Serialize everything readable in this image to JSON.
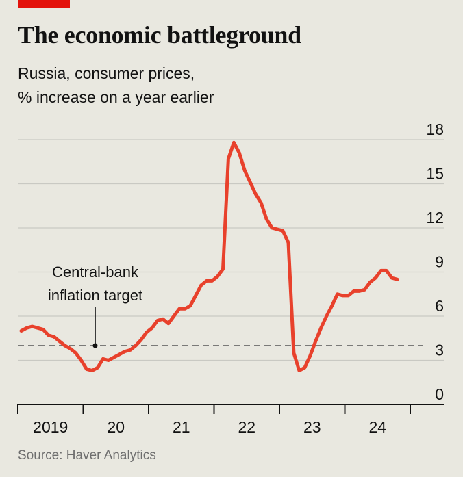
{
  "header": {
    "title": "The economic battleground",
    "subtitle_line1": "Russia, consumer prices,",
    "subtitle_line2": "% increase on a year earlier",
    "accent_color": "#e3120b"
  },
  "footer": {
    "source": "Source: Haver Analytics"
  },
  "chart_data": {
    "type": "line",
    "title": "The economic battleground",
    "subtitle": "Russia, consumer prices, % increase on a year earlier",
    "source": "Source: Haver Analytics",
    "x_tick_labels": [
      "2019",
      "20",
      "21",
      "22",
      "23",
      "24"
    ],
    "y_ticks": [
      0,
      3,
      6,
      9,
      12,
      15,
      18
    ],
    "ylim": [
      0,
      18
    ],
    "grid": true,
    "y_axis_side": "right",
    "series": [
      {
        "color": "#e8412c",
        "x": [
          "2019-01",
          "2019-02",
          "2019-03",
          "2019-04",
          "2019-05",
          "2019-06",
          "2019-07",
          "2019-08",
          "2019-09",
          "2019-10",
          "2019-11",
          "2019-12",
          "2020-01",
          "2020-02",
          "2020-03",
          "2020-04",
          "2020-05",
          "2020-06",
          "2020-07",
          "2020-08",
          "2020-09",
          "2020-10",
          "2020-11",
          "2020-12",
          "2021-01",
          "2021-02",
          "2021-03",
          "2021-04",
          "2021-05",
          "2021-06",
          "2021-07",
          "2021-08",
          "2021-09",
          "2021-10",
          "2021-11",
          "2021-12",
          "2022-01",
          "2022-02",
          "2022-03",
          "2022-04",
          "2022-05",
          "2022-06",
          "2022-07",
          "2022-08",
          "2022-09",
          "2022-10",
          "2022-11",
          "2022-12",
          "2023-01",
          "2023-02",
          "2023-03",
          "2023-04",
          "2023-05",
          "2023-06",
          "2023-07",
          "2023-08",
          "2023-09",
          "2023-10",
          "2023-11",
          "2023-12",
          "2024-01",
          "2024-02",
          "2024-03",
          "2024-04",
          "2024-05",
          "2024-06",
          "2024-07",
          "2024-08",
          "2024-09",
          "2024-10"
        ],
        "values": [
          5.0,
          5.2,
          5.3,
          5.2,
          5.1,
          4.7,
          4.6,
          4.3,
          4.0,
          3.8,
          3.5,
          3.0,
          2.4,
          2.3,
          2.5,
          3.1,
          3.0,
          3.2,
          3.4,
          3.6,
          3.7,
          4.0,
          4.4,
          4.9,
          5.2,
          5.7,
          5.8,
          5.5,
          6.0,
          6.5,
          6.5,
          6.7,
          7.4,
          8.1,
          8.4,
          8.4,
          8.7,
          9.2,
          16.7,
          17.8,
          17.1,
          15.9,
          15.1,
          14.3,
          13.7,
          12.6,
          12.0,
          11.9,
          11.8,
          11.0,
          3.5,
          2.3,
          2.5,
          3.3,
          4.3,
          5.2,
          6.0,
          6.7,
          7.5,
          7.4,
          7.4,
          7.7,
          7.7,
          7.8,
          8.3,
          8.6,
          9.1,
          9.1,
          8.6,
          8.5
        ]
      }
    ],
    "reference_line": {
      "label_line1": "Central-bank",
      "label_line2": "inflation target",
      "value": 4
    }
  }
}
